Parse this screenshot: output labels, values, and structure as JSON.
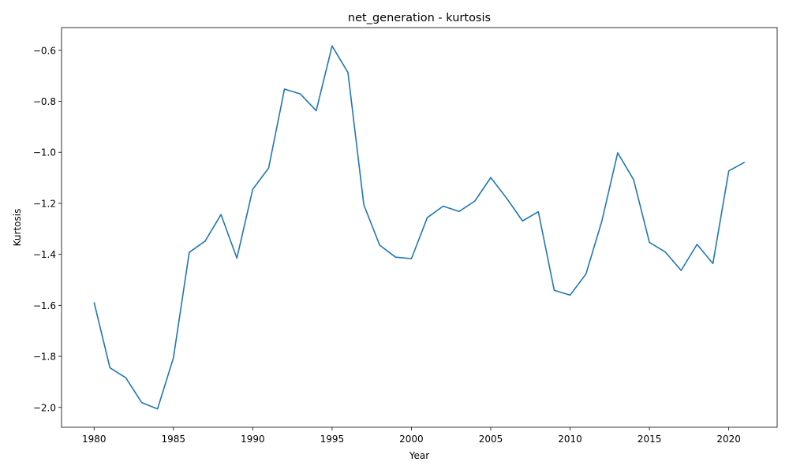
{
  "chart_data": {
    "type": "line",
    "title": "net_generation - kurtosis",
    "xlabel": "Year",
    "ylabel": "Kurtosis",
    "xlim": [
      1977.95,
      2023.05
    ],
    "ylim": [
      -2.078,
      -0.511
    ],
    "xticks": [
      1980,
      1985,
      1990,
      1995,
      2000,
      2005,
      2010,
      2015,
      2020
    ],
    "yticks": [
      -2.0,
      -1.8,
      -1.6,
      -1.4,
      -1.2,
      -1.0,
      -0.8,
      -0.6
    ],
    "ytick_labels": [
      "−2.0",
      "−1.8",
      "−1.6",
      "−1.4",
      "−1.2",
      "−1.0",
      "−0.8",
      "−0.6"
    ],
    "grid": false,
    "series": [
      {
        "color": "#1f77b4",
        "x": [
          1980,
          1981,
          1982,
          1983,
          1984,
          1985,
          1986,
          1987,
          1988,
          1989,
          1990,
          1991,
          1992,
          1993,
          1994,
          1995,
          1996,
          1997,
          1998,
          1999,
          2000,
          2001,
          2002,
          2003,
          2004,
          2005,
          2006,
          2007,
          2008,
          2009,
          2010,
          2011,
          2012,
          2013,
          2014,
          2015,
          2016,
          2017,
          2018,
          2019,
          2020,
          2021
        ],
        "y": [
          -1.588,
          -1.845,
          -1.884,
          -1.981,
          -2.006,
          -1.806,
          -1.392,
          -1.348,
          -1.244,
          -1.415,
          -1.145,
          -1.062,
          -0.752,
          -0.771,
          -0.837,
          -0.583,
          -0.687,
          -1.206,
          -1.364,
          -1.411,
          -1.417,
          -1.256,
          -1.211,
          -1.232,
          -1.191,
          -1.099,
          -1.18,
          -1.269,
          -1.233,
          -1.541,
          -1.56,
          -1.477,
          -1.27,
          -1.002,
          -1.107,
          -1.353,
          -1.391,
          -1.463,
          -1.361,
          -1.436,
          -1.073,
          -1.039
        ]
      }
    ]
  }
}
